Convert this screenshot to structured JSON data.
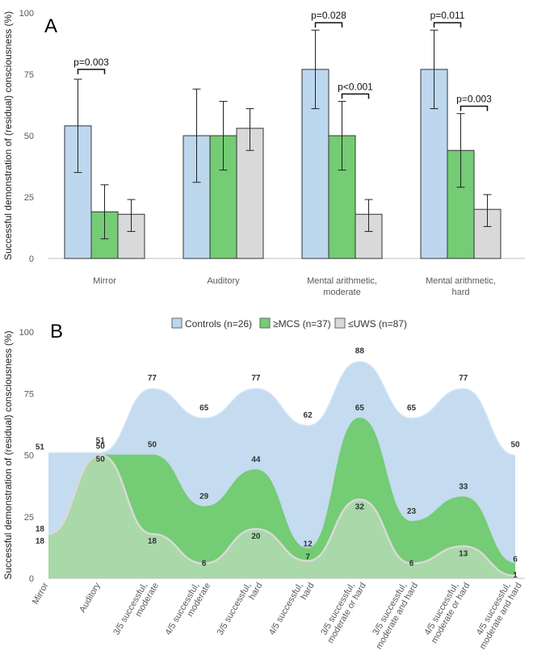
{
  "colors": {
    "controls": "#bdd7ee",
    "mcs": "#74cc74",
    "uws": "#d9d9d9",
    "bar_stroke": "#333333",
    "axis": "#bfbfbf"
  },
  "legend": {
    "items": [
      "Controls (n=26)",
      "≥MCS (n=37)",
      "≤UWS (n=87)"
    ]
  },
  "chart_data": [
    {
      "panel": "A",
      "type": "bar",
      "ylabel": "Successful demonstration of (residual) consciousness (%)",
      "ylim": [
        0,
        100
      ],
      "yticks": [
        0,
        25,
        50,
        75,
        100
      ],
      "categories": [
        "Mirror",
        "Auditory",
        "Mental arithmetic, moderate",
        "Mental arithmetic, hard"
      ],
      "category_lines": [
        [
          "Mirror"
        ],
        [
          "Auditory"
        ],
        [
          "Mental arithmetic,",
          "moderate"
        ],
        [
          "Mental arithmetic,",
          "hard"
        ]
      ],
      "series": [
        {
          "name": "Controls (n=26)",
          "values": [
            54,
            50,
            77,
            77
          ],
          "err_low": [
            35,
            31,
            61,
            61
          ],
          "err_high": [
            73,
            69,
            93,
            93
          ]
        },
        {
          "name": "≥MCS (n=37)",
          "values": [
            19,
            50,
            50,
            44
          ],
          "err_low": [
            8,
            36,
            36,
            29
          ],
          "err_high": [
            30,
            64,
            64,
            59
          ]
        },
        {
          "name": "≤UWS (n=87)",
          "values": [
            18,
            53,
            18,
            20
          ],
          "err_low": [
            11,
            44,
            11,
            13
          ],
          "err_high": [
            24,
            61,
            24,
            26
          ]
        }
      ],
      "comparisons": [
        {
          "category": 0,
          "from": 0,
          "to": 1,
          "label": "p=0.003",
          "y": 77
        },
        {
          "category": 2,
          "from": 0,
          "to": 1,
          "label": "p=0.028",
          "y": 96
        },
        {
          "category": 2,
          "from": 1,
          "to": 2,
          "label": "p<0.001",
          "y": 67
        },
        {
          "category": 3,
          "from": 0,
          "to": 1,
          "label": "p=0.011",
          "y": 96
        },
        {
          "category": 3,
          "from": 1,
          "to": 2,
          "label": "p=0.003",
          "y": 62
        }
      ]
    },
    {
      "panel": "B",
      "type": "area",
      "ylabel": "Successful demonstration of (residual) consciousness (%)",
      "ylim": [
        0,
        100
      ],
      "yticks": [
        0,
        25,
        50,
        75,
        100
      ],
      "categories": [
        "Mirror",
        "Auditory",
        "3/5 successful, moderate",
        "4/5 successful, moderate",
        "3/5 successful, hard",
        "4/5 successful, hard",
        "3/5 successful, moderate or hard",
        "3/5 successful, moderate and hard",
        "4/5 successful, moderate or hard",
        "4/5 successful, moderate and hard"
      ],
      "category_lines": [
        [
          "Mirror"
        ],
        [
          "Auditory"
        ],
        [
          "3/5 successful,",
          "moderate"
        ],
        [
          "4/5 successful,",
          "moderate"
        ],
        [
          "3/5 successful,",
          "hard"
        ],
        [
          "4/5 successful,",
          "hard"
        ],
        [
          "3/5 successful,",
          "moderate or hard"
        ],
        [
          "3/5 successful,",
          "moderate and hard"
        ],
        [
          "4/5 successful,",
          "moderate or hard"
        ],
        [
          "4/5 successful,",
          "moderate and hard"
        ]
      ],
      "series": [
        {
          "name": "Controls (n=26)",
          "values": [
            51,
            51,
            77,
            65,
            77,
            62,
            88,
            65,
            77,
            50
          ]
        },
        {
          "name": "≥MCS (n=37)",
          "values": [
            18,
            50,
            50,
            29,
            44,
            12,
            65,
            23,
            33,
            6
          ]
        },
        {
          "name": "≤UWS (n=87)",
          "values": [
            18,
            50,
            18,
            6,
            20,
            7,
            32,
            6,
            13,
            1
          ]
        }
      ]
    }
  ]
}
